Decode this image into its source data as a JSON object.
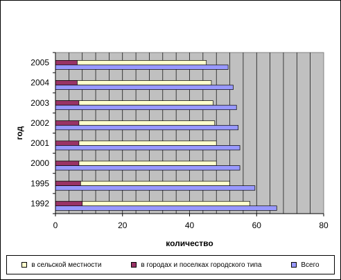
{
  "chart_data": {
    "type": "bar",
    "orientation": "horizontal",
    "categories": [
      "1992",
      "1995",
      "2000",
      "2001",
      "2002",
      "2003",
      "2004",
      "2005"
    ],
    "series": [
      {
        "name": "в сельской местности",
        "color": "#ffffcc",
        "values": [
          58,
          52,
          48,
          48,
          47.5,
          47,
          46.5,
          45
        ]
      },
      {
        "name": "в городах и поселках городского типа",
        "color": "#993366",
        "values": [
          8,
          7.5,
          7,
          7,
          7,
          7,
          6.5,
          6.5
        ]
      },
      {
        "name": "Всего",
        "color": "#9999ff",
        "values": [
          66,
          59.5,
          55,
          55,
          54.5,
          54,
          53,
          51.5
        ]
      }
    ],
    "xlabel": "количество",
    "ylabel": "год",
    "xlim": [
      0,
      80
    ],
    "xticks": [
      "0",
      "20",
      "40",
      "60",
      "80"
    ],
    "plot_background": "#c0c0c0",
    "grid": true,
    "legend_position": "bottom"
  }
}
